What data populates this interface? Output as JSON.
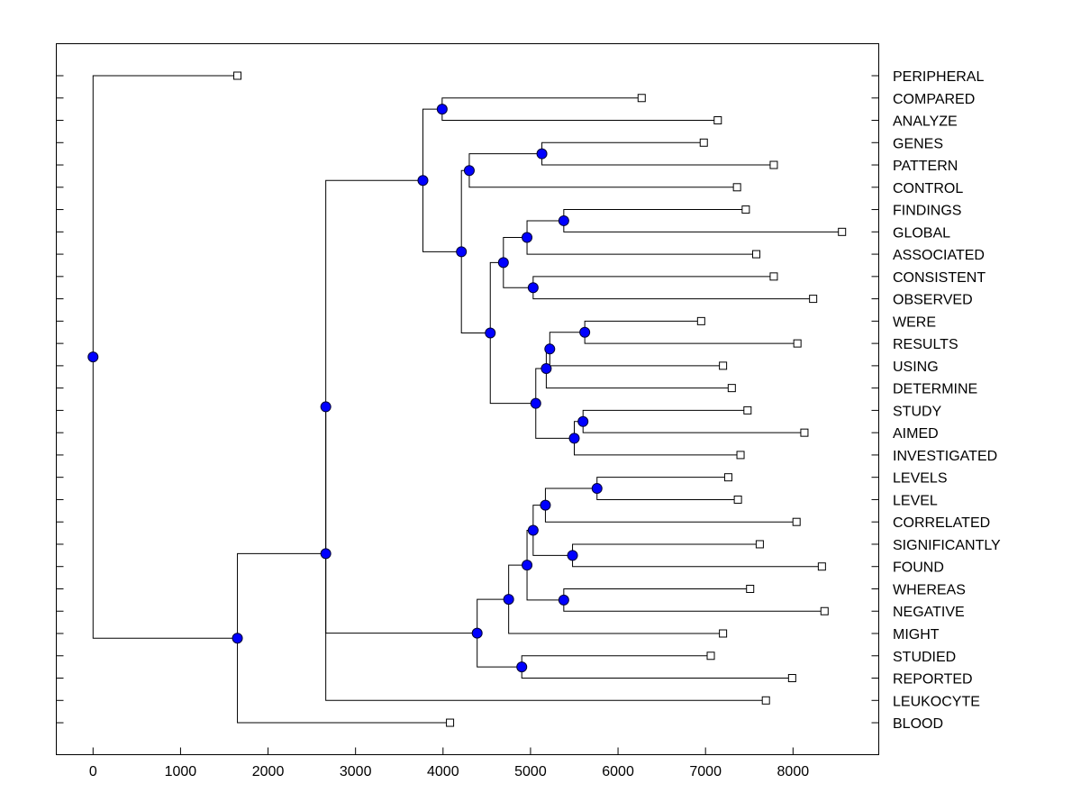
{
  "chart_data": {
    "type": "dendrogram",
    "title": "",
    "xlabel": "",
    "ylabel": "",
    "xlim": [
      -420,
      8980
    ],
    "xticks": [
      0,
      1000,
      2000,
      3000,
      4000,
      5000,
      6000,
      7000,
      8000
    ],
    "xtick_labels": [
      "0",
      "1000",
      "2000",
      "3000",
      "4000",
      "5000",
      "6000",
      "7000",
      "8000"
    ],
    "grid": false,
    "colors": {
      "node_fill": "#0000ff",
      "node_stroke": "#000033",
      "leaf_fill": "#ffffff",
      "line": "#000000"
    },
    "leaves": [
      {
        "label": "PERIPHERAL",
        "x": 1650
      },
      {
        "label": "COMPARED",
        "x": 6270
      },
      {
        "label": "ANALYZE",
        "x": 7140
      },
      {
        "label": "GENES",
        "x": 6980
      },
      {
        "label": "PATTERN",
        "x": 7780
      },
      {
        "label": "CONTROL",
        "x": 7360
      },
      {
        "label": "FINDINGS",
        "x": 7460
      },
      {
        "label": "GLOBAL",
        "x": 8560
      },
      {
        "label": "ASSOCIATED",
        "x": 7580
      },
      {
        "label": "CONSISTENT",
        "x": 7780
      },
      {
        "label": "OBSERVED",
        "x": 8230
      },
      {
        "label": "WERE",
        "x": 6950
      },
      {
        "label": "RESULTS",
        "x": 8050
      },
      {
        "label": "USING",
        "x": 7200
      },
      {
        "label": "DETERMINE",
        "x": 7300
      },
      {
        "label": "STUDY",
        "x": 7480
      },
      {
        "label": "AIMED",
        "x": 8130
      },
      {
        "label": "INVESTIGATED",
        "x": 7400
      },
      {
        "label": "LEVELS",
        "x": 7260
      },
      {
        "label": "LEVEL",
        "x": 7370
      },
      {
        "label": "CORRELATED",
        "x": 8040
      },
      {
        "label": "SIGNIFICANTLY",
        "x": 7620
      },
      {
        "label": "FOUND",
        "x": 8330
      },
      {
        "label": "WHEREAS",
        "x": 7510
      },
      {
        "label": "NEGATIVE",
        "x": 8360
      },
      {
        "label": "MIGHT",
        "x": 7200
      },
      {
        "label": "STUDIED",
        "x": 7060
      },
      {
        "label": "REPORTED",
        "x": 7990
      },
      {
        "label": "LEUKOCYTE",
        "x": 7690
      },
      {
        "label": "BLOOD",
        "x": 4080
      }
    ],
    "merges": [
      {
        "a": "L1",
        "b": "L2",
        "x": 3990
      },
      {
        "a": "L3",
        "b": "L4",
        "x": 5130
      },
      {
        "a": "M1",
        "b": "L5",
        "x": 4300
      },
      {
        "a": "L6",
        "b": "L7",
        "x": 5380
      },
      {
        "a": "M3",
        "b": "L8",
        "x": 4960
      },
      {
        "a": "L9",
        "b": "L10",
        "x": 5030
      },
      {
        "a": "M4",
        "b": "M5",
        "x": 4690
      },
      {
        "a": "L11",
        "b": "L12",
        "x": 5620
      },
      {
        "a": "M7",
        "b": "L13",
        "x": 5220
      },
      {
        "a": "M8",
        "b": "L14",
        "x": 5180
      },
      {
        "a": "L15",
        "b": "L16",
        "x": 5600
      },
      {
        "a": "M10",
        "b": "L17",
        "x": 5500
      },
      {
        "a": "M9",
        "b": "M11",
        "x": 5060
      },
      {
        "a": "M6",
        "b": "M12",
        "x": 4540
      },
      {
        "a": "M2",
        "b": "M13",
        "x": 4210
      },
      {
        "a": "M0",
        "b": "M14",
        "x": 3770
      },
      {
        "a": "L18",
        "b": "L19",
        "x": 5760
      },
      {
        "a": "M16",
        "b": "L20",
        "x": 5170
      },
      {
        "a": "L21",
        "b": "L22",
        "x": 5480
      },
      {
        "a": "M17",
        "b": "M18",
        "x": 5030
      },
      {
        "a": "L23",
        "b": "L24",
        "x": 5380
      },
      {
        "a": "M19",
        "b": "M20",
        "x": 4960
      },
      {
        "a": "M21",
        "b": "L25",
        "x": 4750
      },
      {
        "a": "L26",
        "b": "L27",
        "x": 4900
      },
      {
        "a": "M22",
        "b": "M23",
        "x": 4390
      },
      {
        "a": "M15",
        "b": "M24",
        "x": 2660
      },
      {
        "a": "M25",
        "b": "L28",
        "x": 2660
      },
      {
        "a": "M26",
        "b": "L29",
        "x": 1650
      },
      {
        "a": "L0",
        "b": "M27",
        "x": 0
      }
    ]
  }
}
